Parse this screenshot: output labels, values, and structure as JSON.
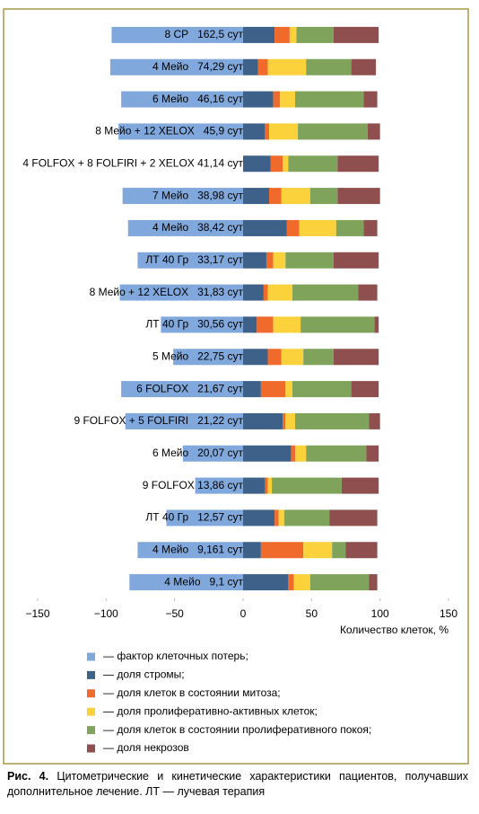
{
  "chart_data": {
    "type": "bar",
    "orientation": "horizontal",
    "stacked": true,
    "categories": [
      "8 СР   162,5 сут",
      "4 Мейо   74,29 сут",
      "6 Мейо   46,16 сут",
      "8 Мейо + 12 XELOX   45,9 сут",
      "4 FOLFOX + 8 FOLFIRI + 2 XELOX 41,14 сут",
      "7 Мейо   38,98 сут",
      "4 Мейо   38,42 сут",
      "ЛТ 40 Гр   33,17 сут",
      "8 Мейо + 12 XELOX   31,83 сут",
      "ЛТ 40 Гр   30,56 сут",
      "5 Мейо   22,75 сут",
      "6 FOLFOX   21,67 сут",
      "9 FOLFOX + 5 FOLFIRI   21,22 сут",
      "6 Мейо   20,07 сут",
      "9 FOLFOX 13,86 сут",
      "ЛТ 40 Гр   12,57 сут",
      "4 Мейо   9,161 сут",
      "4 Мейо   9,1 сут"
    ],
    "series": [
      {
        "name": "— фактор клеточных потерь;",
        "color": "#80a8dc",
        "values": [
          -96,
          -97,
          -89,
          -91,
          0,
          -88,
          -84,
          -77,
          -90,
          -60,
          -51,
          -89,
          -86,
          -44,
          -35,
          -56,
          -77,
          -83
        ]
      },
      {
        "name": "— доля стромы;",
        "color": "#3d6189",
        "values": [
          23,
          11,
          22,
          16,
          20,
          19,
          32,
          17,
          15,
          10,
          18,
          13,
          29,
          35,
          16,
          23,
          13,
          33
        ]
      },
      {
        "name": "— доля клеток в состоянии митоза;",
        "color": "#f06a2b",
        "values": [
          11,
          7,
          5,
          3,
          9,
          9,
          9,
          5,
          3,
          12,
          10,
          18,
          2,
          3,
          2,
          3,
          31,
          4
        ]
      },
      {
        "name": "— доля пролиферативно-активных клеток;",
        "color": "#fbd23c",
        "values": [
          5,
          28,
          11,
          21,
          4,
          21,
          27,
          9,
          18,
          20,
          16,
          5,
          7,
          8,
          3,
          4,
          21,
          12
        ]
      },
      {
        "name": "— доля клеток в состоянии пролиферативного покоя;",
        "color": "#80a35b",
        "values": [
          27,
          33,
          50,
          51,
          36,
          20,
          20,
          35,
          48,
          54,
          22,
          43,
          54,
          44,
          51,
          33,
          10,
          43
        ]
      },
      {
        "name": "— доля некрозов",
        "color": "#8f4f4f",
        "values": [
          33,
          18,
          10,
          9,
          30,
          31,
          10,
          33,
          14,
          3,
          33,
          20,
          8,
          9,
          27,
          35,
          23,
          6
        ]
      }
    ],
    "xlim": [
      -150,
      150
    ],
    "xticks": [
      {
        "value": -150,
        "label": "−150"
      },
      {
        "value": -100,
        "label": "−100"
      },
      {
        "value": -50,
        "label": "−50"
      },
      0,
      50,
      100,
      150
    ],
    "x_label": "Количество клеток, %",
    "grid": false
  },
  "caption": {
    "label": "Рис. 4.",
    "text": "Цитометрические и кинетические характеристики пациентов, получавших дополнительное лечение. ЛТ — лучевая терапия"
  }
}
